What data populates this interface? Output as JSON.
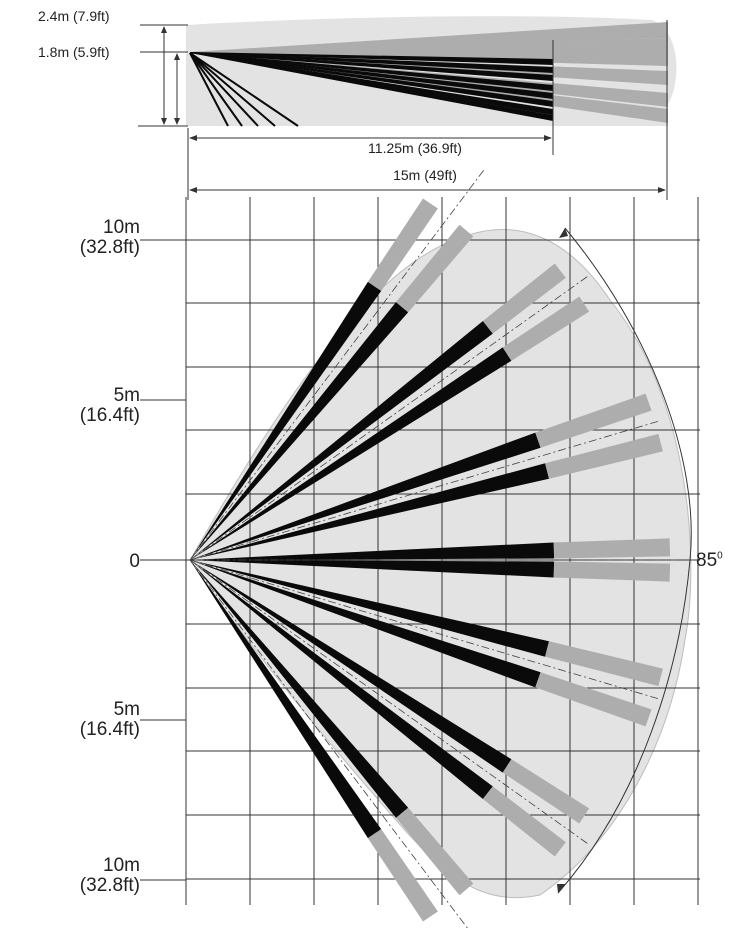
{
  "side_view": {
    "height_labels": [
      "2.4m (7.9ft)",
      "1.8m (5.9ft)"
    ],
    "range_labels": [
      "11.25m (36.9ft)",
      "15m (49ft)"
    ]
  },
  "top_view": {
    "scale_labels": [
      {
        "m": "10m",
        "ft": "(32.8ft)"
      },
      {
        "m": "5m",
        "ft": "(16.4ft)"
      },
      {
        "m": "0",
        "ft": ""
      },
      {
        "m": "5m",
        "ft": "(16.4ft)"
      },
      {
        "m": "10m",
        "ft": "(32.8ft)"
      }
    ],
    "angle_label": "85",
    "angle_unit": "0"
  },
  "colors": {
    "zone_fill": "#e3e3e3",
    "near_beam": "#0a0a0a",
    "far_beam": "#adadad",
    "grid": "#333333"
  }
}
